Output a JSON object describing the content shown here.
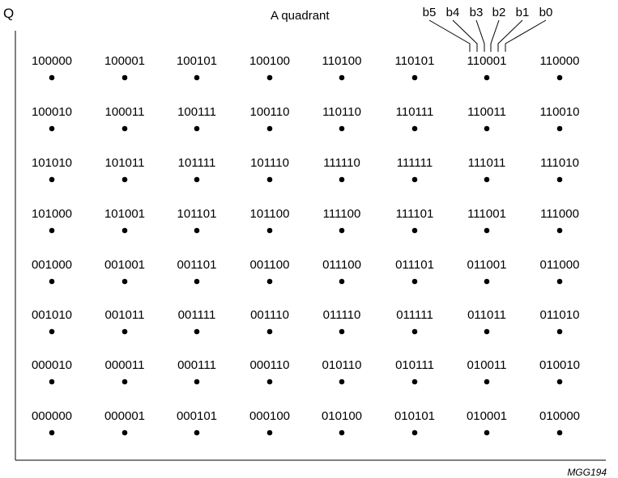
{
  "axis_label": "Q",
  "quadrant_label": "A quadrant",
  "figure_ref": "MGG194",
  "bit_labels": [
    "b5",
    "b4",
    "b3",
    "b2",
    "b1",
    "b0"
  ],
  "annotated_code": "110001",
  "rows": [
    [
      "100000",
      "100001",
      "100101",
      "100100",
      "110100",
      "110101",
      "110001",
      "110000"
    ],
    [
      "100010",
      "100011",
      "100111",
      "100110",
      "110110",
      "110111",
      "110011",
      "110010"
    ],
    [
      "101010",
      "101011",
      "101111",
      "101110",
      "111110",
      "111111",
      "111011",
      "111010"
    ],
    [
      "101000",
      "101001",
      "101101",
      "101100",
      "111100",
      "111101",
      "111001",
      "111000"
    ],
    [
      "001000",
      "001001",
      "001101",
      "001100",
      "011100",
      "011101",
      "011001",
      "011000"
    ],
    [
      "001010",
      "001011",
      "001111",
      "001110",
      "011110",
      "011111",
      "011011",
      "011010"
    ],
    [
      "000010",
      "000011",
      "000111",
      "000110",
      "010110",
      "010111",
      "010011",
      "010010"
    ],
    [
      "000000",
      "000001",
      "000101",
      "000100",
      "010100",
      "010101",
      "010001",
      "010000"
    ]
  ]
}
